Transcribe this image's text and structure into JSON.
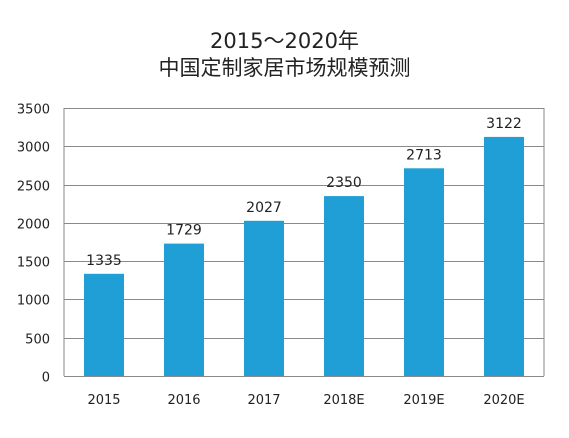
{
  "chart_data": {
    "type": "bar",
    "title": "2015～2020年",
    "subtitle": "中国定制家居市场规模预测",
    "categories": [
      "2015",
      "2016",
      "2017",
      "2018E",
      "2019E",
      "2020E"
    ],
    "values": [
      1335,
      1729,
      2027,
      2350,
      2713,
      3122
    ],
    "data_labels": [
      "1335",
      "1729",
      "2027",
      "2350",
      "2713",
      "3122"
    ],
    "yticks": [
      "0",
      "500",
      "1000",
      "1500",
      "2000",
      "2500",
      "3000",
      "3500"
    ],
    "ylim": [
      0,
      3500
    ],
    "xlabel": "",
    "ylabel": "",
    "grid": true,
    "legend": "none",
    "bar_color": "#1f9fd5"
  }
}
